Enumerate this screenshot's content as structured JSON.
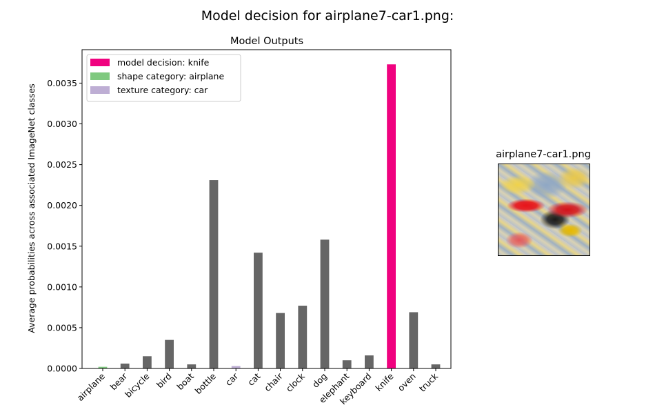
{
  "figure": {
    "suptitle": "Model decision for airplane7-car1.png:"
  },
  "stimulus": {
    "title": "airplane7-car1.png"
  },
  "colors": {
    "decision": "#f0027f",
    "shape": "#7fc97f",
    "texture": "#beaed4",
    "default": "#666666"
  },
  "chart_data": {
    "type": "bar",
    "title": "Model Outputs",
    "xlabel": "",
    "ylabel": "Average probabilities across associated ImageNet classes",
    "categories": [
      "airplane",
      "bear",
      "bicycle",
      "bird",
      "boat",
      "bottle",
      "car",
      "cat",
      "chair",
      "clock",
      "dog",
      "elephant",
      "keyboard",
      "knife",
      "oven",
      "truck"
    ],
    "values": [
      2e-05,
      6e-05,
      0.00015,
      0.00035,
      5e-05,
      0.00231,
      3e-05,
      0.00142,
      0.00068,
      0.00077,
      0.00158,
      0.0001,
      0.00016,
      0.00373,
      0.00069,
      5e-05
    ],
    "bar_roles": [
      "shape",
      "default",
      "default",
      "default",
      "default",
      "default",
      "texture",
      "default",
      "default",
      "default",
      "default",
      "default",
      "default",
      "decision",
      "default",
      "default"
    ],
    "ylim": [
      0,
      0.00391
    ],
    "yticks": [
      0,
      0.0005,
      0.001,
      0.0015,
      0.002,
      0.0025,
      0.003,
      0.0035
    ],
    "ytick_labels": [
      "0.0000",
      "0.0005",
      "0.0010",
      "0.0015",
      "0.0020",
      "0.0025",
      "0.0030",
      "0.0035"
    ],
    "grid": false,
    "legend_position": "top-left",
    "legend": [
      {
        "label": "model decision: knife",
        "role": "decision"
      },
      {
        "label": "shape category: airplane",
        "role": "shape"
      },
      {
        "label": "texture category: car",
        "role": "texture"
      }
    ]
  }
}
